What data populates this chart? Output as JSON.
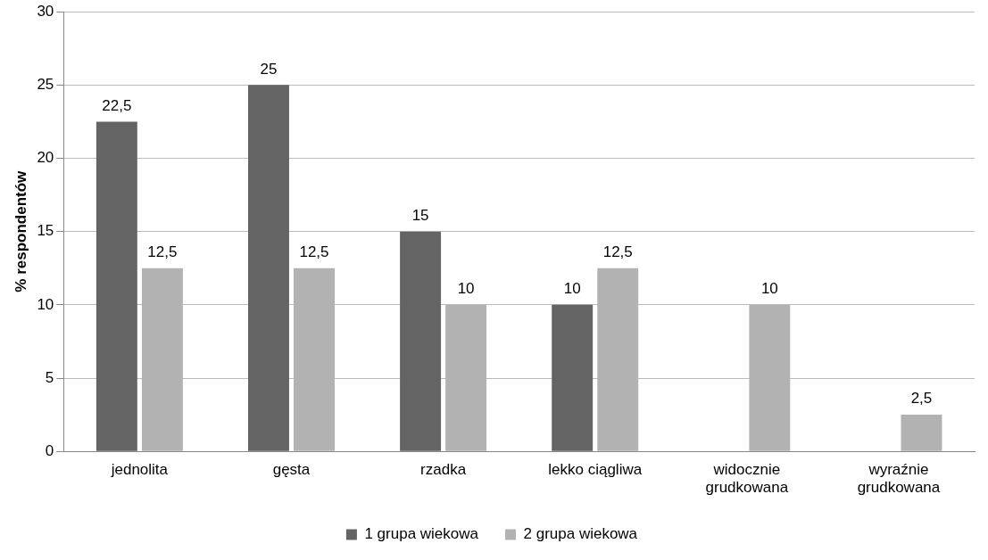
{
  "chart_data": {
    "type": "bar",
    "ylabel": "% respondentów",
    "categories": [
      "jednolita",
      "gęsta",
      "rzadka",
      "lekko ciągliwa",
      "widocznie grudkowana",
      "wyraźnie grudkowana"
    ],
    "series": [
      {
        "name": "1 grupa wiekowa",
        "color": "#646464",
        "values": [
          22.5,
          25,
          15,
          10,
          null,
          null
        ],
        "value_labels": [
          "22,5",
          "25",
          "15",
          "10",
          null,
          null
        ]
      },
      {
        "name": "2 grupa wiekowa",
        "color": "#b2b2b2",
        "values": [
          12.5,
          12.5,
          10,
          12.5,
          10,
          2.5
        ],
        "value_labels": [
          "12,5",
          "12,5",
          "10",
          "12,5",
          "10",
          "2,5"
        ]
      }
    ],
    "ylim": [
      0,
      30
    ],
    "yticks": [
      0,
      5,
      10,
      15,
      20,
      25,
      30
    ],
    "grid": "y",
    "legend": "bottom"
  }
}
